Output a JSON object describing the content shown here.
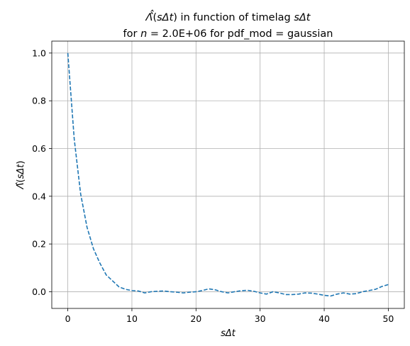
{
  "chart_data": {
    "type": "line",
    "title_line1_parts": [
      "Λ̂̂",
      "(",
      "sΔt",
      ")",
      " in function of timelag ",
      "sΔt"
    ],
    "title_line2_parts": [
      "for ",
      "n",
      " = 2.0E+06 for pdf_mod = gaussian"
    ],
    "xlabel": "sΔt",
    "ylabel_parts": [
      "Λ̂",
      "(",
      "sΔt",
      ")"
    ],
    "xlim": [
      -2.5,
      52.5
    ],
    "ylim": [
      -0.07,
      1.05
    ],
    "xticks": [
      0,
      10,
      20,
      30,
      40,
      50
    ],
    "yticks": [
      0.0,
      0.2,
      0.4,
      0.6,
      0.8,
      1.0
    ],
    "ytick_labels": [
      "0.0",
      "0.2",
      "0.4",
      "0.6",
      "0.8",
      "1.0"
    ],
    "grid": true,
    "line_color": "#1f77b4",
    "line_style": "dashed",
    "series": [
      {
        "x": [
          0,
          1,
          2,
          3,
          4,
          5,
          6,
          7,
          8,
          9,
          10,
          11,
          12,
          13,
          14,
          15,
          16,
          17,
          18,
          19,
          20,
          21,
          22,
          23,
          24,
          25,
          26,
          27,
          28,
          29,
          30,
          31,
          32,
          33,
          34,
          35,
          36,
          37,
          38,
          39,
          40,
          41,
          42,
          43,
          44,
          45,
          46,
          47,
          48,
          49,
          50
        ],
        "values": [
          1.0,
          0.64,
          0.41,
          0.27,
          0.18,
          0.12,
          0.07,
          0.045,
          0.02,
          0.01,
          0.005,
          0.003,
          -0.005,
          0.0,
          0.002,
          0.003,
          0.0,
          -0.002,
          -0.005,
          -0.002,
          0.0,
          0.005,
          0.012,
          0.008,
          0.0,
          -0.005,
          0.0,
          0.004,
          0.006,
          0.002,
          -0.005,
          -0.01,
          0.0,
          -0.005,
          -0.012,
          -0.012,
          -0.01,
          -0.005,
          -0.006,
          -0.01,
          -0.015,
          -0.018,
          -0.01,
          -0.005,
          -0.01,
          -0.008,
          0.0,
          0.005,
          0.01,
          0.022,
          0.03
        ]
      }
    ]
  }
}
